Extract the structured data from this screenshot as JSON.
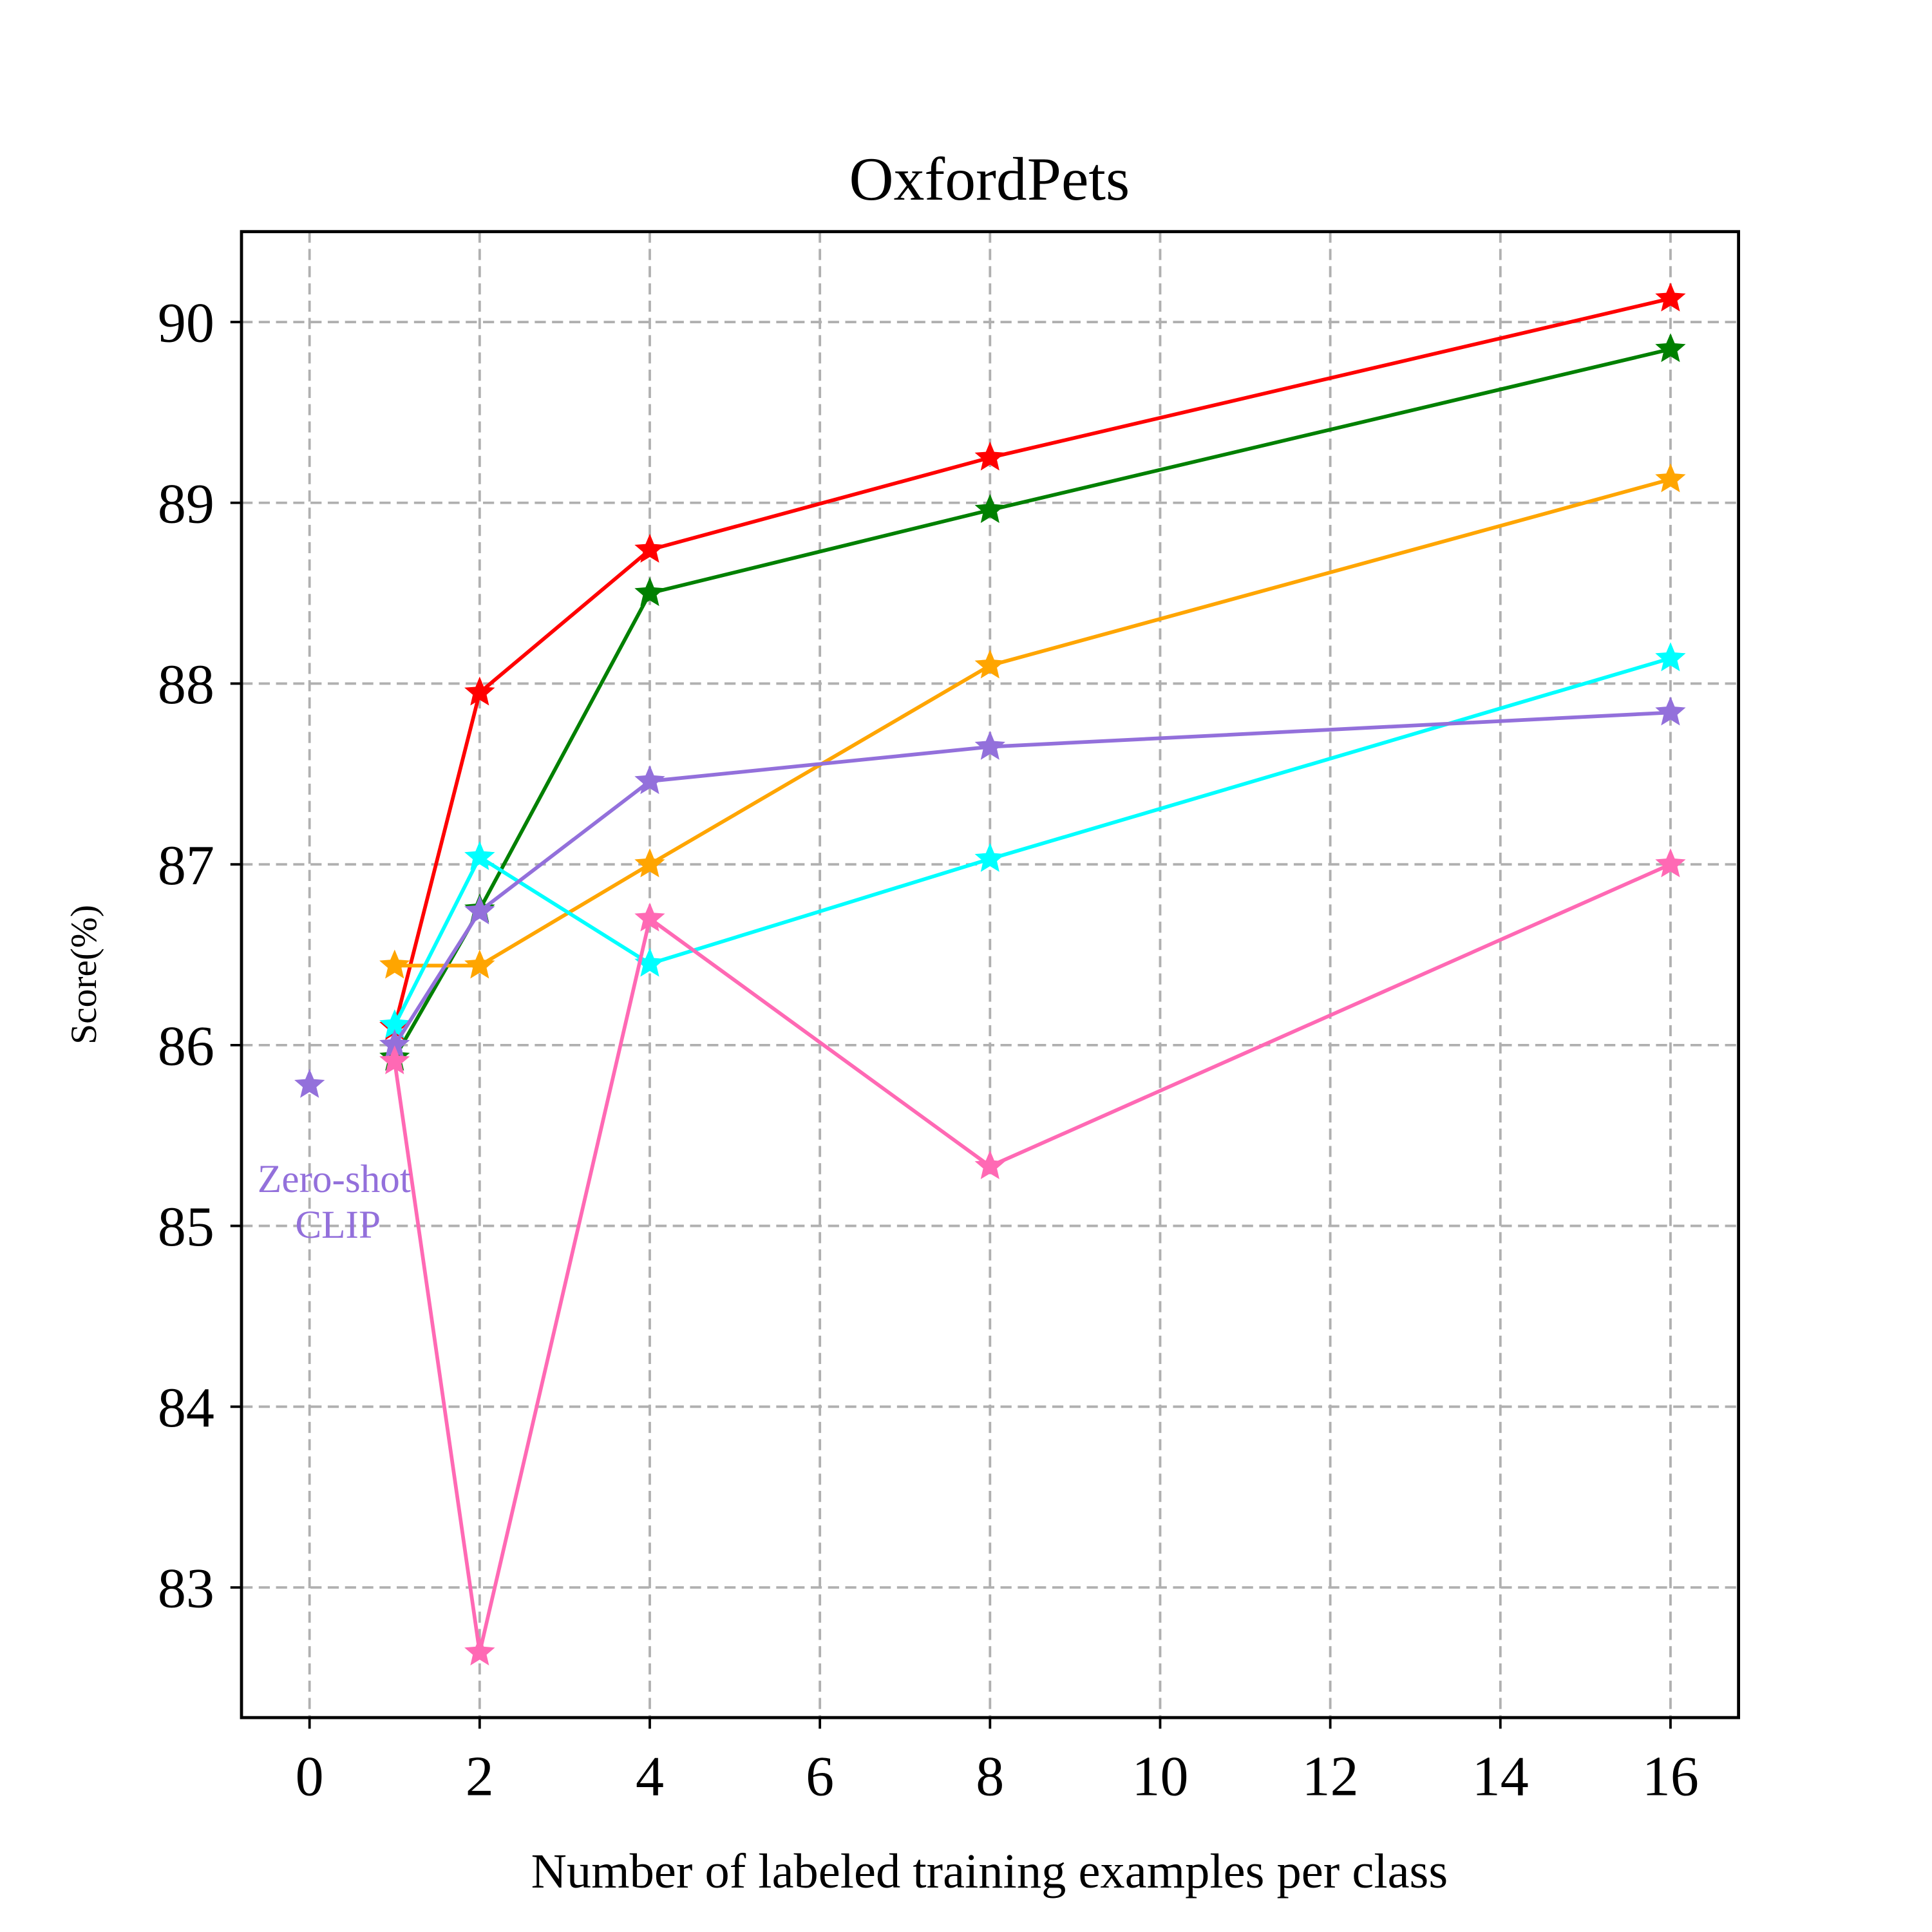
{
  "chart_data": {
    "type": "line",
    "title": "OxfordPets",
    "xlabel": "Number of labeled training examples per class",
    "ylabel": "Score(%)",
    "xlim": [
      -0.8,
      16.8
    ],
    "ylim": [
      82.28,
      90.5
    ],
    "xticks": [
      0,
      2,
      4,
      6,
      8,
      10,
      12,
      14,
      16
    ],
    "yticks": [
      83,
      84,
      85,
      86,
      87,
      88,
      89,
      90
    ],
    "grid": true,
    "x": [
      1,
      2,
      4,
      8,
      16
    ],
    "series": [
      {
        "name": "red",
        "color": "#ff0000",
        "values": [
          86.1,
          87.95,
          88.74,
          89.25,
          90.13
        ]
      },
      {
        "name": "green",
        "color": "#008000",
        "values": [
          85.93,
          86.75,
          88.5,
          88.96,
          89.85
        ]
      },
      {
        "name": "orange",
        "color": "#ffa500",
        "values": [
          86.44,
          86.44,
          87.0,
          88.1,
          89.13
        ]
      },
      {
        "name": "cyan",
        "color": "#00ffff",
        "values": [
          86.11,
          87.04,
          86.45,
          87.03,
          88.14
        ]
      },
      {
        "name": "purple",
        "color": "#9370db",
        "values": [
          86.0,
          86.74,
          87.46,
          87.65,
          87.84
        ]
      },
      {
        "name": "pink",
        "color": "#ff69b4",
        "values": [
          85.91,
          82.64,
          86.7,
          85.33,
          87.0
        ]
      }
    ],
    "zero_shot": {
      "x": 0,
      "y": 85.78,
      "color": "#9370db",
      "label_line1": "Zero-shot",
      "label_line2": "CLIP"
    }
  }
}
